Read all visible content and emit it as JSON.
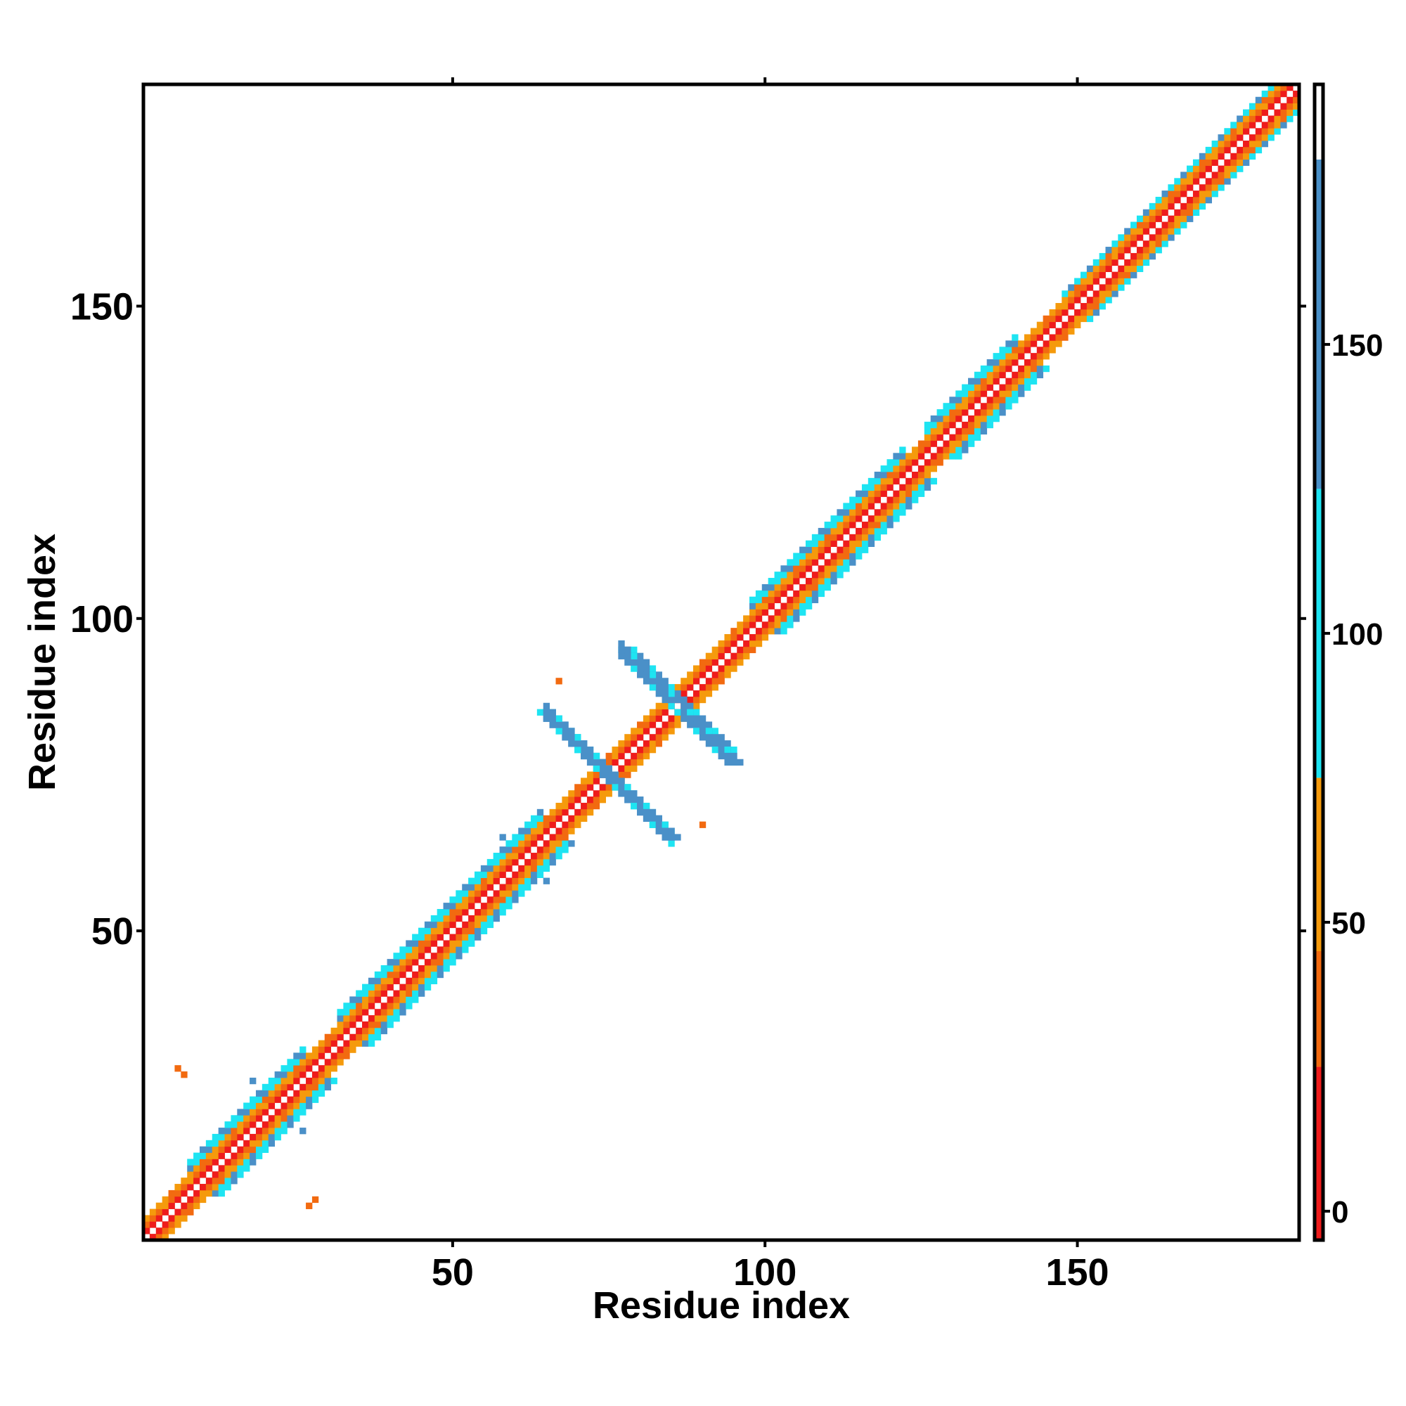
{
  "chart_data": {
    "type": "heatmap",
    "title": "",
    "xlabel": "Residue index",
    "ylabel": "Residue index",
    "xlim": [
      0,
      185
    ],
    "ylim": [
      0,
      185
    ],
    "x_ticks": [
      50,
      100,
      150
    ],
    "y_ticks": [
      50,
      100,
      150
    ],
    "grid": false,
    "legend": "colorbar-right",
    "colorbar": {
      "ticks": [
        0,
        50,
        100,
        150
      ],
      "range": [
        -5,
        195
      ],
      "stops": [
        {
          "from": -5,
          "to": 25,
          "color": "#ee1c1c"
        },
        {
          "from": 25,
          "to": 45,
          "color": "#f26a10"
        },
        {
          "from": 45,
          "to": 75,
          "color": "#f59a0c"
        },
        {
          "from": 75,
          "to": 125,
          "color": "#1ee4f2"
        },
        {
          "from": 125,
          "to": 182,
          "color": "#4a90c8"
        },
        {
          "from": 182,
          "to": 195,
          "color": "#ffffff"
        }
      ]
    },
    "diagonal_band": {
      "description_values": "distance |i-j| to color value mapping along main diagonal",
      "segments": [
        {
          "i_start": 1,
          "i_end": 185
        }
      ],
      "offset_values": [
        {
          "offset": 0,
          "value": 190
        },
        {
          "offset": 1,
          "value": 10
        },
        {
          "offset": 2,
          "value": 40
        },
        {
          "offset": 3,
          "value": 60
        },
        {
          "offset": 4,
          "value": 100
        }
      ],
      "wide_regions": [
        {
          "i_start": 8,
          "i_end": 26,
          "max_offset": 5
        },
        {
          "i_start": 32,
          "i_end": 64,
          "max_offset": 5
        },
        {
          "i_start": 98,
          "i_end": 122,
          "max_offset": 5
        },
        {
          "i_start": 126,
          "i_end": 140,
          "max_offset": 5
        },
        {
          "i_start": 148,
          "i_end": 185,
          "max_offset": 4
        }
      ]
    },
    "antiparallel_strands": [
      {
        "i": [
          65,
          85
        ],
        "j": [
          85,
          65
        ],
        "value": 150
      },
      {
        "i": [
          78,
          95
        ],
        "j": [
          95,
          77
        ],
        "value": 150
      }
    ],
    "isolated_contacts": [
      {
        "x": 6,
        "y": 28,
        "value": 40
      },
      {
        "x": 7,
        "y": 27,
        "value": 40
      },
      {
        "x": 27,
        "y": 6,
        "value": 40
      },
      {
        "x": 28,
        "y": 7,
        "value": 40
      },
      {
        "x": 67,
        "y": 90,
        "value": 40
      },
      {
        "x": 90,
        "y": 67,
        "value": 40
      },
      {
        "x": 18,
        "y": 26,
        "value": 150
      },
      {
        "x": 26,
        "y": 18,
        "value": 150
      },
      {
        "x": 58,
        "y": 65,
        "value": 150
      },
      {
        "x": 65,
        "y": 58,
        "value": 150
      }
    ]
  }
}
